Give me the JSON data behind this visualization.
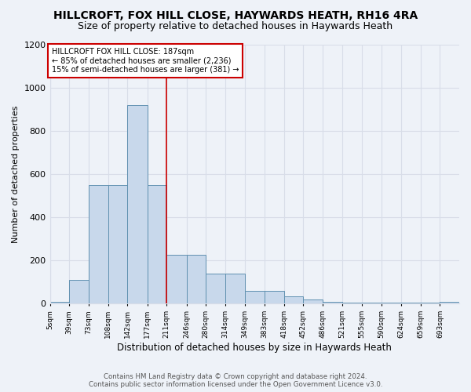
{
  "title": "HILLCROFT, FOX HILL CLOSE, HAYWARDS HEATH, RH16 4RA",
  "subtitle": "Size of property relative to detached houses in Haywards Heath",
  "xlabel": "Distribution of detached houses by size in Haywards Heath",
  "ylabel": "Number of detached properties",
  "footer_line1": "Contains HM Land Registry data © Crown copyright and database right 2024.",
  "footer_line2": "Contains public sector information licensed under the Open Government Licence v3.0.",
  "bin_edges": [
    5,
    39,
    73,
    108,
    142,
    177,
    211,
    246,
    280,
    314,
    349,
    383,
    418,
    452,
    486,
    521,
    555,
    590,
    624,
    659,
    693,
    727
  ],
  "bin_labels": [
    "5sqm",
    "39sqm",
    "73sqm",
    "108sqm",
    "142sqm",
    "177sqm",
    "211sqm",
    "246sqm",
    "280sqm",
    "314sqm",
    "349sqm",
    "383sqm",
    "418sqm",
    "452sqm",
    "486sqm",
    "521sqm",
    "555sqm",
    "590sqm",
    "624sqm",
    "659sqm",
    "693sqm"
  ],
  "bar_heights": [
    10,
    110,
    550,
    550,
    920,
    550,
    225,
    225,
    140,
    140,
    60,
    60,
    35,
    20,
    10,
    5,
    5,
    5,
    5,
    5,
    10
  ],
  "bar_color": "#c8d8eb",
  "bar_edge_color": "#6090b0",
  "red_line_x": 211,
  "ylim": [
    0,
    1200
  ],
  "yticks": [
    0,
    200,
    400,
    600,
    800,
    1000,
    1200
  ],
  "annotation_text": "HILLCROFT FOX HILL CLOSE: 187sqm\n← 85% of detached houses are smaller (2,236)\n15% of semi-detached houses are larger (381) →",
  "annotation_box_color": "#ffffff",
  "annotation_border_color": "#cc0000",
  "background_color": "#eef2f8",
  "grid_color": "#d8dde8",
  "title_fontsize": 10,
  "subtitle_fontsize": 9
}
